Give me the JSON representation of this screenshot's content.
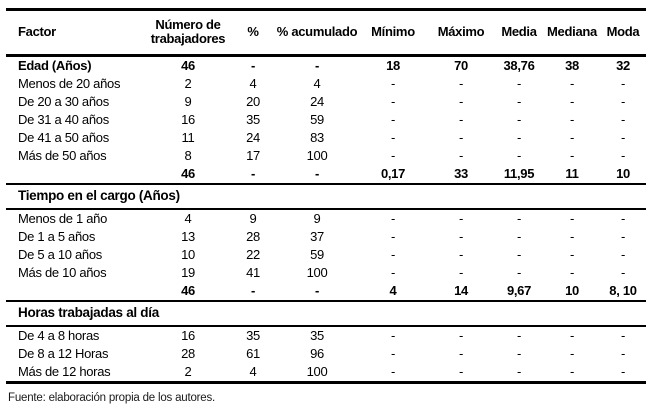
{
  "table": {
    "columns": [
      "Factor",
      "Número de trabajadores",
      "%",
      "% acumulado",
      "Mínimo",
      "Máximo",
      "Media",
      "Mediana",
      "Moda"
    ],
    "rows": [
      {
        "type": "group",
        "cells": [
          "Edad (Años)",
          "46",
          "-",
          "-",
          "18",
          "70",
          "38,76",
          "38",
          "32"
        ]
      },
      {
        "type": "data",
        "cells": [
          "Menos de 20 años",
          "2",
          "4",
          "4",
          "-",
          "-",
          "-",
          "-",
          "-"
        ]
      },
      {
        "type": "data",
        "cells": [
          "De 20 a 30 años",
          "9",
          "20",
          "24",
          "-",
          "-",
          "-",
          "-",
          "-"
        ]
      },
      {
        "type": "data",
        "cells": [
          "De 31 a 40 años",
          "16",
          "35",
          "59",
          "-",
          "-",
          "-",
          "-",
          "-"
        ]
      },
      {
        "type": "data",
        "cells": [
          "De 41 a 50 años",
          "11",
          "24",
          "83",
          "-",
          "-",
          "-",
          "-",
          "-"
        ]
      },
      {
        "type": "data",
        "cells": [
          "Más de 50 años",
          "8",
          "17",
          "100",
          "-",
          "-",
          "-",
          "-",
          "-"
        ]
      },
      {
        "type": "total",
        "cells": [
          "",
          "46",
          "-",
          "-",
          "0,17",
          "33",
          "11,95",
          "11",
          "10"
        ]
      },
      {
        "type": "section",
        "cells": [
          "Tiempo en el cargo (Años)"
        ]
      },
      {
        "type": "data",
        "cells": [
          "Menos de 1 año",
          "4",
          "9",
          "9",
          "-",
          "-",
          "-",
          "-",
          "-"
        ]
      },
      {
        "type": "data",
        "cells": [
          "De 1 a 5 años",
          "13",
          "28",
          "37",
          "-",
          "-",
          "-",
          "-",
          "-"
        ]
      },
      {
        "type": "data",
        "cells": [
          "De 5 a 10 años",
          "10",
          "22",
          "59",
          "-",
          "-",
          "-",
          "-",
          "-"
        ]
      },
      {
        "type": "data",
        "cells": [
          "Más de 10 años",
          "19",
          "41",
          "100",
          "-",
          "-",
          "-",
          "-",
          "-"
        ]
      },
      {
        "type": "total",
        "cells": [
          "",
          "46",
          "-",
          "-",
          "4",
          "14",
          "9,67",
          "10",
          "8, 10"
        ]
      },
      {
        "type": "section",
        "cells": [
          "Horas trabajadas al día"
        ]
      },
      {
        "type": "data",
        "cells": [
          "De 4 a 8 horas",
          "16",
          "35",
          "35",
          "-",
          "-",
          "-",
          "-",
          "-"
        ]
      },
      {
        "type": "data",
        "cells": [
          "De 8 a 12 Horas",
          "28",
          "61",
          "96",
          "-",
          "-",
          "-",
          "-",
          "-"
        ]
      },
      {
        "type": "data",
        "cells": [
          "Más de 12 horas",
          "2",
          "4",
          "100",
          "-",
          "-",
          "-",
          "-",
          "-"
        ]
      }
    ]
  },
  "footer": {
    "source": "Fuente: elaboración propia de los autores."
  },
  "colors": {
    "text": "#000000",
    "background": "#ffffff",
    "rule": "#000000"
  }
}
